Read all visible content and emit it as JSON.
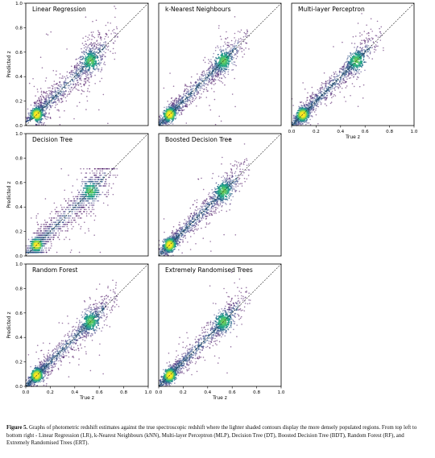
{
  "chart_data": [
    {
      "type": "scatter",
      "title": "Linear Regression",
      "xlabel": "",
      "ylabel": "Predicted z",
      "xlim": [
        0,
        1
      ],
      "ylim": [
        0,
        1
      ],
      "xticks": [],
      "yticks": [
        "0.0",
        "0.2",
        "0.4",
        "0.6",
        "0.8",
        "1.0"
      ],
      "diagonal": "y = x",
      "density_colormap": "viridis",
      "scatter_style": "discrete"
    },
    {
      "type": "scatter",
      "title": "k-Nearest Neighbours",
      "xlabel": "",
      "ylabel": "",
      "xlim": [
        0,
        1
      ],
      "ylim": [
        0,
        1
      ],
      "xticks": [],
      "yticks": [],
      "diagonal": "y = x",
      "density_colormap": "viridis",
      "scatter_style": "tight"
    },
    {
      "type": "scatter",
      "title": "Multi-layer Perceptron",
      "xlabel": "True z",
      "ylabel": "",
      "xlim": [
        0,
        1
      ],
      "ylim": [
        0,
        1
      ],
      "xticks": [
        "0.0",
        "0.2",
        "0.4",
        "0.6",
        "0.8",
        "1.0"
      ],
      "yticks": [],
      "diagonal": "y = x",
      "density_colormap": "viridis",
      "scatter_style": "tight"
    },
    {
      "type": "scatter",
      "title": "Decision Tree",
      "xlabel": "",
      "ylabel": "Predicted z",
      "xlim": [
        0,
        1
      ],
      "ylim": [
        0,
        1
      ],
      "xticks": [],
      "yticks": [
        "0.0",
        "0.2",
        "0.4",
        "0.6",
        "0.8",
        "1.0"
      ],
      "diagonal": "y = x",
      "density_colormap": "viridis",
      "scatter_style": "discrete"
    },
    {
      "type": "scatter",
      "title": "Boosted Decision Tree",
      "xlabel": "",
      "ylabel": "",
      "xlim": [
        0,
        1
      ],
      "ylim": [
        0,
        1
      ],
      "xticks": [],
      "yticks": [],
      "diagonal": "y = x",
      "density_colormap": "viridis",
      "scatter_style": "tight"
    },
    {
      "type": "scatter",
      "title": "Random Forest",
      "xlabel": "True z",
      "ylabel": "Predicted z",
      "xlim": [
        0,
        1
      ],
      "ylim": [
        0,
        1
      ],
      "xticks": [
        "0.0",
        "0.2",
        "0.4",
        "0.6",
        "0.8",
        "1.0"
      ],
      "yticks": [
        "0.0",
        "0.2",
        "0.4",
        "0.6",
        "0.8",
        "1.0"
      ],
      "diagonal": "y = x",
      "density_colormap": "viridis",
      "scatter_style": "tight"
    },
    {
      "type": "scatter",
      "title": "Extremely Randomised Trees",
      "xlabel": "True z",
      "ylabel": "",
      "xlim": [
        0,
        1
      ],
      "ylim": [
        0,
        1
      ],
      "xticks": [
        "0.0",
        "0.2",
        "0.4",
        "0.6",
        "0.8",
        "1.0"
      ],
      "yticks": [],
      "diagonal": "y = x",
      "density_colormap": "viridis",
      "scatter_style": "tight"
    }
  ],
  "caption": {
    "label": "Figure 5.",
    "text": "Graphs of photometric redshift estimates against the true spectroscopic redshift where the lighter shaded contours display the more densely populated regions. From top left to bottom right - Linear Regression (LR), k-Nearest Neighbours (kNN), Multi-layer Perceptron (MLP), Decision Tree (DT), Boosted Decision Tree (BDT), Random Forest (RF), and Extremely Randomised Trees (ERT)."
  }
}
